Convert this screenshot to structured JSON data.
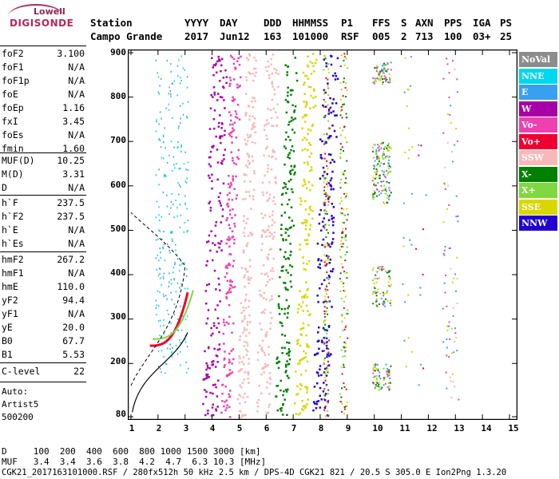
{
  "logo": {
    "brand": "Lowell",
    "product": "DIGISONDE"
  },
  "header": {
    "row1": [
      {
        "id": "station",
        "text": "Station"
      },
      {
        "id": "yyyy",
        "text": "YYYY"
      },
      {
        "id": "day",
        "text": "DAY"
      },
      {
        "id": "ddd",
        "text": "DDD"
      },
      {
        "id": "hhmmss",
        "text": "HHMMSS"
      },
      {
        "id": "p1",
        "text": "P1"
      },
      {
        "id": "ffs",
        "text": "FFS"
      },
      {
        "id": "s",
        "text": "S"
      },
      {
        "id": "axn",
        "text": "AXN"
      },
      {
        "id": "pps",
        "text": "PPS"
      },
      {
        "id": "iga",
        "text": "IGA"
      },
      {
        "id": "ps",
        "text": "PS"
      }
    ],
    "row2": [
      {
        "id": "station_v",
        "text": "Campo Grande"
      },
      {
        "id": "yyyy_v",
        "text": "2017"
      },
      {
        "id": "day_v",
        "text": "Jun12"
      },
      {
        "id": "ddd_v",
        "text": "163"
      },
      {
        "id": "hhmmss_v",
        "text": "101000"
      },
      {
        "id": "p1_v",
        "text": "RSF"
      },
      {
        "id": "ffs_v",
        "text": "005"
      },
      {
        "id": "s_v",
        "text": "2"
      },
      {
        "id": "axn_v",
        "text": "713"
      },
      {
        "id": "pps_v",
        "text": "100"
      },
      {
        "id": "iga_v",
        "text": "03+"
      },
      {
        "id": "ps_v",
        "text": "25"
      }
    ]
  },
  "params": {
    "group1": [
      {
        "k": "foF2",
        "v": "3.100"
      },
      {
        "k": "foF1",
        "v": "N/A"
      },
      {
        "k": "foF1p",
        "v": "N/A"
      },
      {
        "k": "foE",
        "v": "N/A"
      },
      {
        "k": "foEp",
        "v": "1.16"
      },
      {
        "k": "fxI",
        "v": "3.45"
      },
      {
        "k": "foEs",
        "v": "N/A"
      },
      {
        "k": "fmin",
        "v": "1.60"
      }
    ],
    "group2": [
      {
        "k": "MUF(D)",
        "v": "10.25"
      },
      {
        "k": "M(D)",
        "v": "3.31"
      },
      {
        "k": "D",
        "v": "N/A"
      }
    ],
    "group3": [
      {
        "k": "h`F",
        "v": "237.5"
      },
      {
        "k": "h`F2",
        "v": "237.5"
      },
      {
        "k": "h`E",
        "v": "N/A"
      },
      {
        "k": "h`Es",
        "v": "N/A"
      }
    ],
    "group4": [
      {
        "k": "hmF2",
        "v": "267.2"
      },
      {
        "k": "hmF1",
        "v": "N/A"
      },
      {
        "k": "hmE",
        "v": "110.0"
      },
      {
        "k": "yF2",
        "v": "94.4"
      },
      {
        "k": "yF1",
        "v": "N/A"
      },
      {
        "k": "yE",
        "v": "20.0"
      },
      {
        "k": "B0",
        "v": "67.7"
      },
      {
        "k": "B1",
        "v": "5.53"
      }
    ],
    "group5": [
      {
        "k": "C-level",
        "v": "22"
      }
    ]
  },
  "side_notes": {
    "auto": "Auto:",
    "artist": "Artist5",
    "code": "500200"
  },
  "y_axis": {
    "labels": [
      "900",
      "800",
      "700",
      "600",
      "500",
      "400",
      "300",
      "200",
      "80"
    ],
    "ticks": [
      900,
      800,
      700,
      600,
      500,
      400,
      300,
      200,
      80
    ]
  },
  "x_axis": {
    "labels": [
      "1",
      "2",
      "3",
      "4",
      "5",
      "6",
      "7",
      "8",
      "9",
      "10",
      "11",
      "12",
      "13",
      "14",
      "15"
    ],
    "ticks": [
      1,
      2,
      3,
      4,
      5,
      6,
      7,
      8,
      9,
      10,
      11,
      12,
      13,
      14,
      15
    ]
  },
  "legend": [
    {
      "label": "NoVal",
      "color": "#8c8c8c"
    },
    {
      "label": "NNE",
      "color": "#00d8f0"
    },
    {
      "label": "E",
      "color": "#38a0f0"
    },
    {
      "label": "W",
      "color": "#a800a8"
    },
    {
      "label": "Vo-",
      "color": "#f040b0"
    },
    {
      "label": "Vo+",
      "color": "#f00030"
    },
    {
      "label": "SSW",
      "color": "#f8b8b8"
    },
    {
      "label": "X-",
      "color": "#008000"
    },
    {
      "label": "X+",
      "color": "#80d840"
    },
    {
      "label": "SSE",
      "color": "#d8d800"
    },
    {
      "label": "NNW",
      "color": "#2000d0"
    }
  ],
  "footer": {
    "d_row": "D     100  200  400  600  800 1000 1500 3000 [km]",
    "muf_row": "MUF   3.4  3.4  3.6  3.8  4.2  4.7  6.3 10.3 [MHz]",
    "info_row": "CGK21_2017163101000.RSF / 280fx512h 50 kHz 2.5 km / DPS-4D CGK21 821 / 20.5 S 305.0 E Ion2Png 1.3.20"
  }
}
